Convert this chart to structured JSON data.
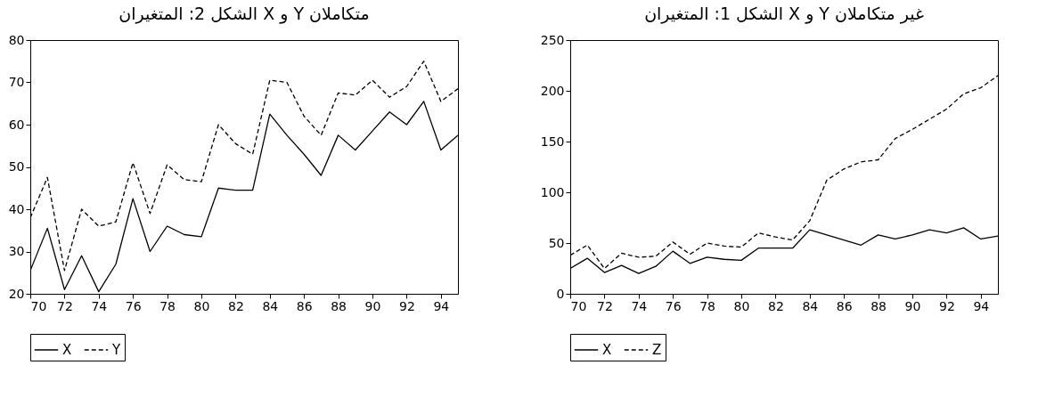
{
  "chart_data": [
    {
      "type": "line",
      "title": "الشكل 2: المتغيران X و Y متكاملان",
      "x": [
        70,
        71,
        72,
        73,
        74,
        75,
        76,
        77,
        78,
        79,
        80,
        81,
        82,
        83,
        84,
        85,
        86,
        87,
        88,
        89,
        90,
        91,
        92,
        93,
        94,
        95
      ],
      "xlim": [
        70,
        95
      ],
      "xticks": [
        70,
        72,
        74,
        76,
        78,
        80,
        82,
        84,
        86,
        88,
        90,
        92,
        94
      ],
      "ylim": [
        20,
        80
      ],
      "yticks": [
        20,
        30,
        40,
        50,
        60,
        70,
        80
      ],
      "grid": false,
      "legend": "bottom",
      "marker": "none",
      "series": [
        {
          "name": "X",
          "color": "#000000",
          "line_style": "solid",
          "values": [
            25.5,
            35.5,
            21,
            29,
            20.5,
            27,
            42.5,
            30,
            36,
            34,
            33.5,
            45,
            44.5,
            44.5,
            62.5,
            57.5,
            53,
            48,
            57.5,
            54,
            58.5,
            63,
            60,
            65.5,
            54,
            57.5
          ]
        },
        {
          "name": "Y",
          "color": "#000000",
          "line_style": "dashed",
          "values": [
            38,
            47.5,
            25.5,
            40,
            36,
            37,
            51,
            39,
            50.5,
            47,
            46.5,
            60,
            55.5,
            53,
            70.5,
            70,
            62,
            57.5,
            67.5,
            67,
            70.5,
            66.5,
            69,
            75,
            65.5,
            68.5
          ]
        }
      ]
    },
    {
      "type": "line",
      "title": "الشكل 1: المتغيران X و Y غير متكاملان",
      "x": [
        70,
        71,
        72,
        73,
        74,
        75,
        76,
        77,
        78,
        79,
        80,
        81,
        82,
        83,
        84,
        85,
        86,
        87,
        88,
        89,
        90,
        91,
        92,
        93,
        94,
        95
      ],
      "xlim": [
        70,
        95
      ],
      "xticks": [
        70,
        72,
        74,
        76,
        78,
        80,
        82,
        84,
        86,
        88,
        90,
        92,
        94
      ],
      "ylim": [
        0,
        250
      ],
      "yticks": [
        0,
        50,
        100,
        150,
        200,
        250
      ],
      "grid": false,
      "legend": "bottom",
      "marker": "none",
      "series": [
        {
          "name": "X",
          "color": "#000000",
          "line_style": "solid",
          "values": [
            25,
            35,
            21,
            28,
            20,
            27,
            42,
            30,
            36,
            34,
            33,
            45,
            45,
            45,
            63,
            58,
            53,
            48,
            58,
            54,
            58,
            63,
            60,
            65,
            54,
            57
          ]
        },
        {
          "name": "Z",
          "color": "#000000",
          "line_style": "dashed",
          "values": [
            38,
            48,
            25,
            40,
            36,
            37,
            51,
            39,
            50,
            47,
            46,
            60,
            56,
            53,
            72,
            112,
            123,
            130,
            132,
            153,
            162,
            172,
            182,
            197,
            203,
            215
          ]
        }
      ]
    }
  ]
}
